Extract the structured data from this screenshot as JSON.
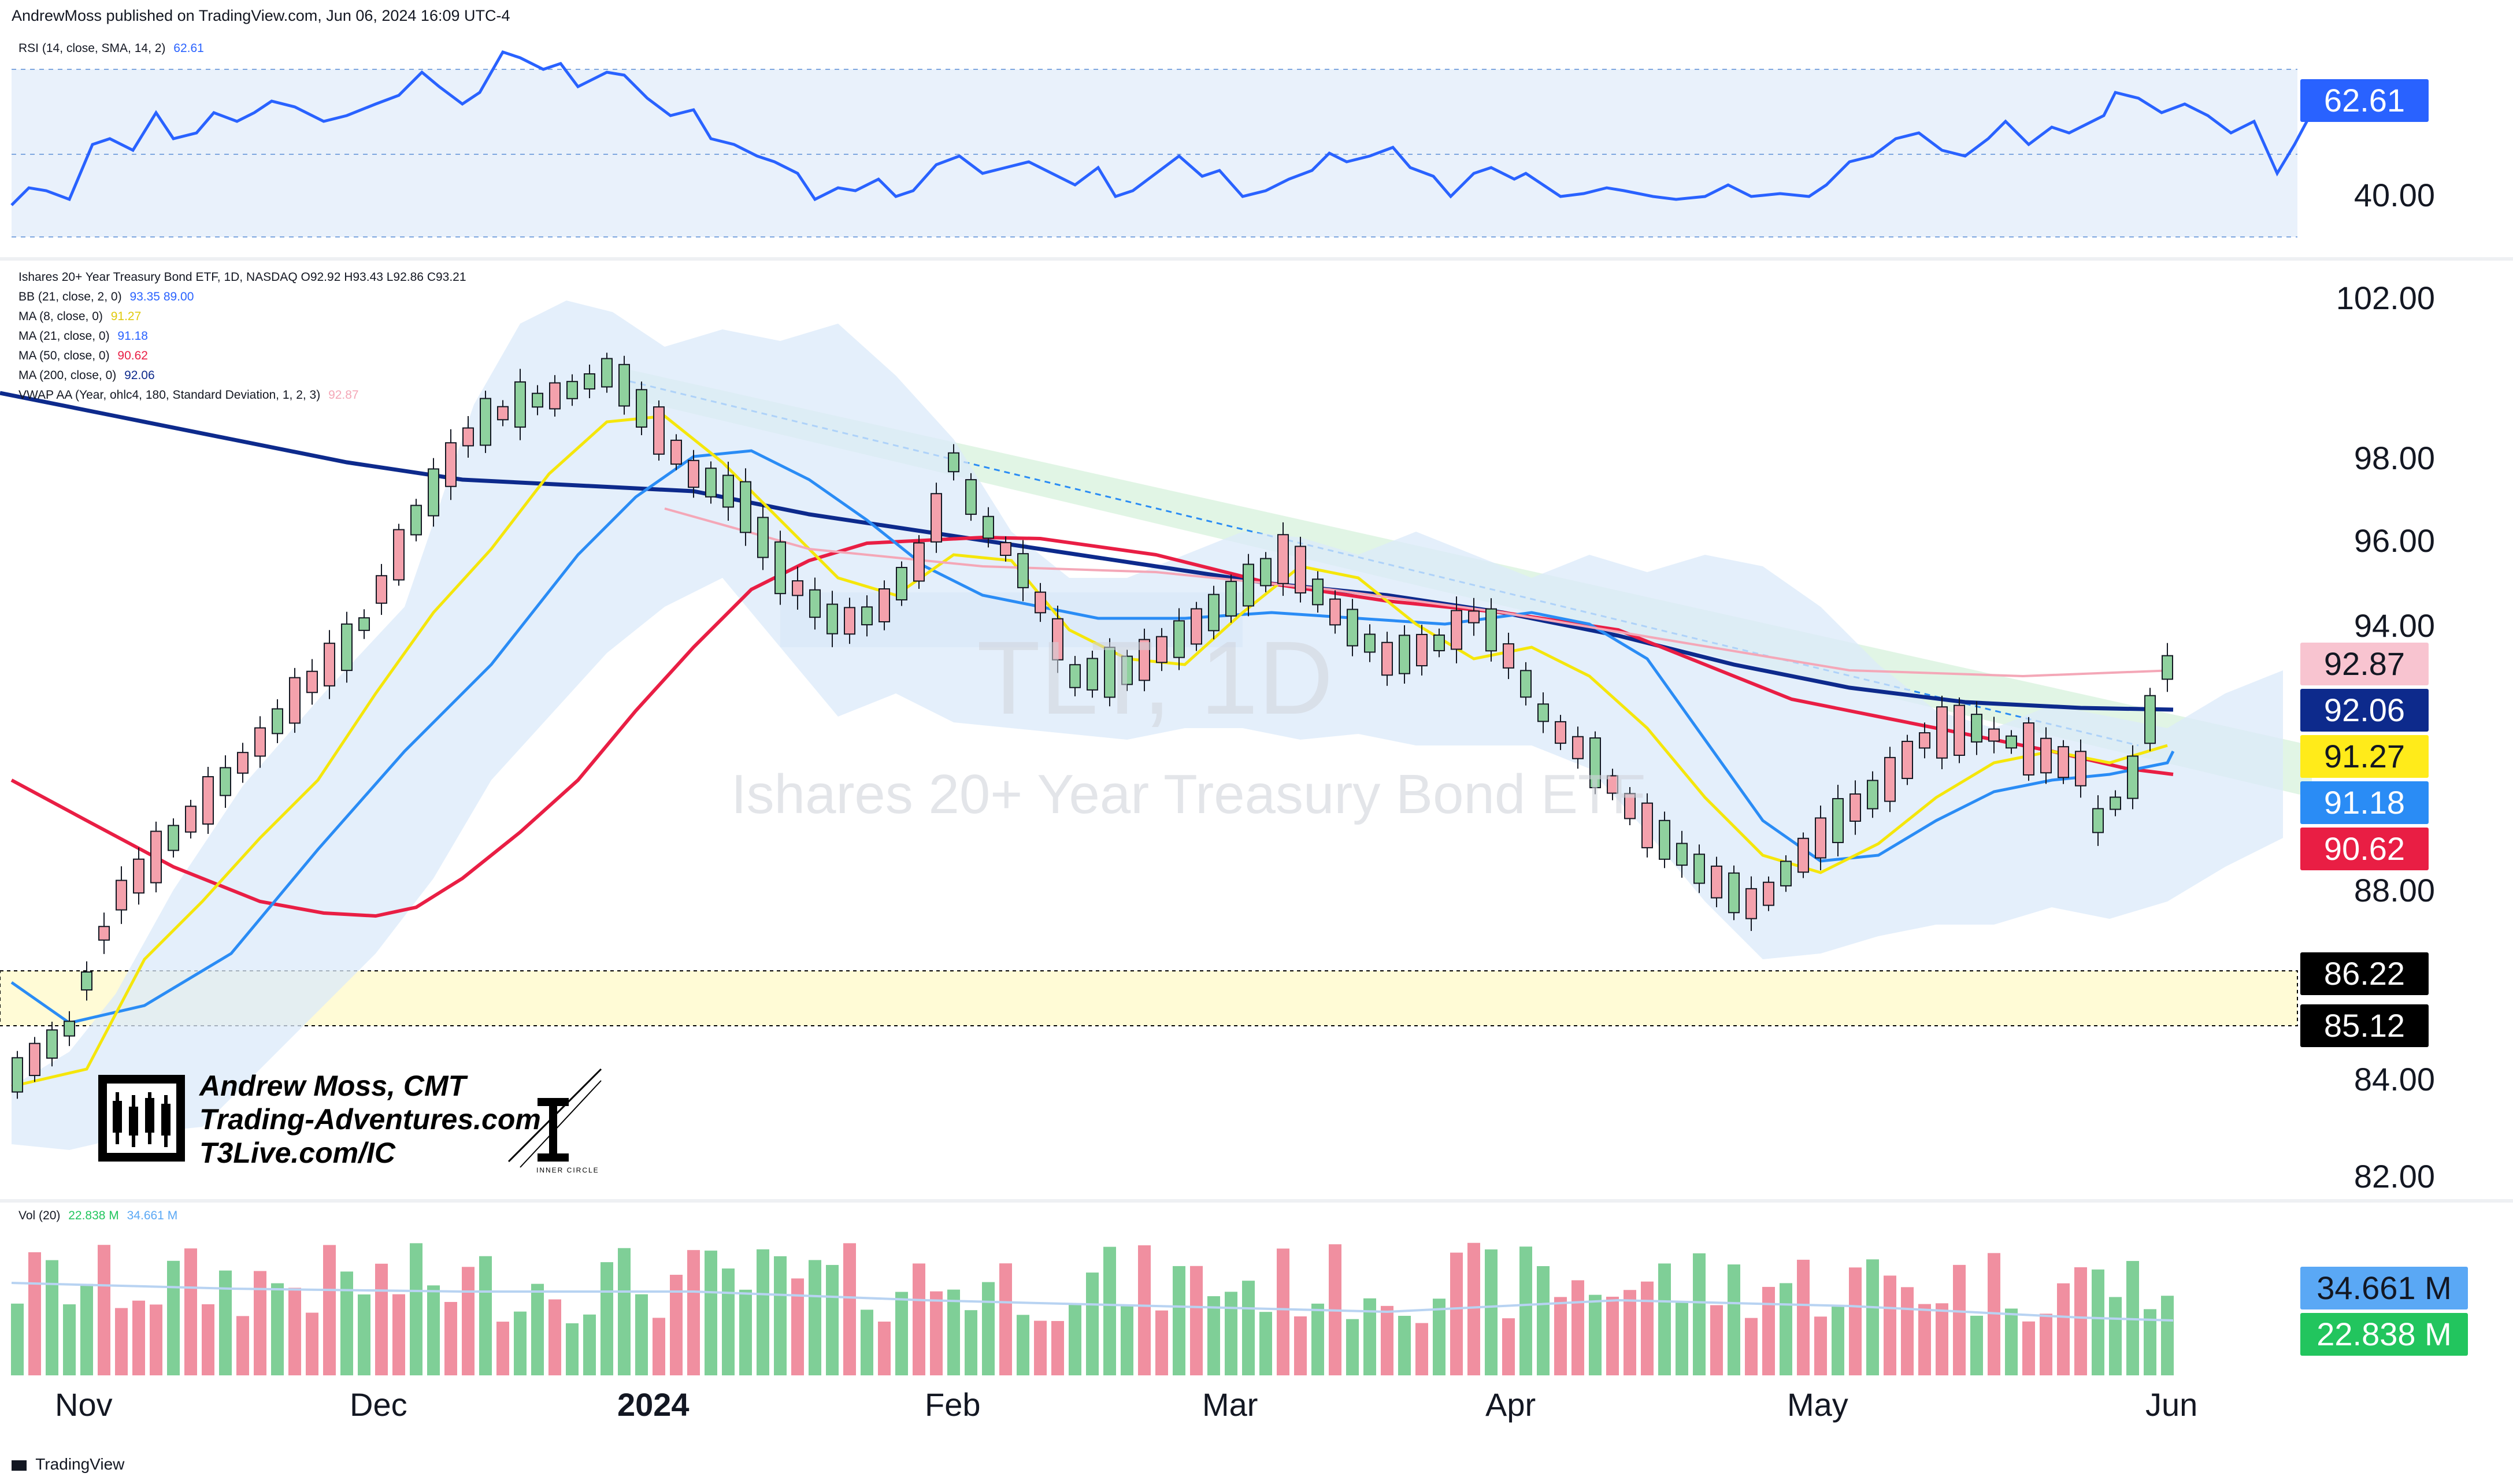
{
  "header": {
    "published": "AndrewMoss published on TradingView.com, Jun 06, 2024 16:09 UTC-4"
  },
  "rsi": {
    "label": "RSI (14, close, SMA, 14, 2)",
    "value": "62.61",
    "axis_labels": [
      "62.61",
      "40.00"
    ],
    "badge_color": "#2962ff"
  },
  "main": {
    "title_line": "Ishares 20+ Year Treasury Bond ETF, 1D, NASDAQ  O92.92  H93.43  L92.86  C93.21",
    "indicators": [
      {
        "label": "BB (21, close, 2, 0)",
        "values": "93.35  89.00",
        "color": "#2962ff"
      },
      {
        "label": "MA (8, close, 0)",
        "values": "91.27",
        "color": "#f5e60b"
      },
      {
        "label": "MA (21, close, 0)",
        "values": "91.18",
        "color": "#2962ff"
      },
      {
        "label": "MA (50, close, 0)",
        "values": "90.62",
        "color": "#e91e44"
      },
      {
        "label": "MA (200, close, 0)",
        "values": "92.06",
        "color": "#0d2a8c"
      },
      {
        "label": "VWAP AA (Year, ohlc4, 180, Standard Deviation, 1, 2, 3)",
        "values": "92.87",
        "color": "#f6b2c0"
      }
    ],
    "watermark_ticker": "TLT, 1D",
    "watermark_name": "Ishares 20+ Year Treasury Bond ETF",
    "price_axis": [
      "102.00",
      "98.00",
      "96.00",
      "94.00",
      "88.00",
      "84.00",
      "82.00"
    ],
    "badges": [
      {
        "value": "92.87",
        "bg": "#f8c4d0",
        "fg": "#131722"
      },
      {
        "value": "92.06",
        "bg": "#0d2a8c",
        "fg": "#ffffff"
      },
      {
        "value": "91.27",
        "bg": "#ffeb1a",
        "fg": "#131722"
      },
      {
        "value": "91.18",
        "bg": "#2a8cf5",
        "fg": "#ffffff"
      },
      {
        "value": "90.62",
        "bg": "#e91e44",
        "fg": "#ffffff"
      },
      {
        "value": "86.22",
        "bg": "#000000",
        "fg": "#ffffff"
      },
      {
        "value": "85.12",
        "bg": "#000000",
        "fg": "#ffffff"
      }
    ],
    "logo_lines": [
      "Andrew Moss, CMT",
      "Trading-Adventures.com",
      "T3Live.com/IC"
    ],
    "inner_circle": "INNER CIRCLE"
  },
  "volume": {
    "label": "Vol (20)",
    "values": "22.838 M",
    "ma": "34.661 M",
    "badges": [
      {
        "value": "34.661 M",
        "bg": "#5aa8f5",
        "fg": "#131722"
      },
      {
        "value": "22.838 M",
        "bg": "#22c55e",
        "fg": "#ffffff"
      }
    ]
  },
  "time_axis": [
    "Nov",
    "Dec",
    "2024",
    "Feb",
    "Mar",
    "Apr",
    "May",
    "Jun"
  ],
  "footer": {
    "brand": "TradingView"
  }
}
